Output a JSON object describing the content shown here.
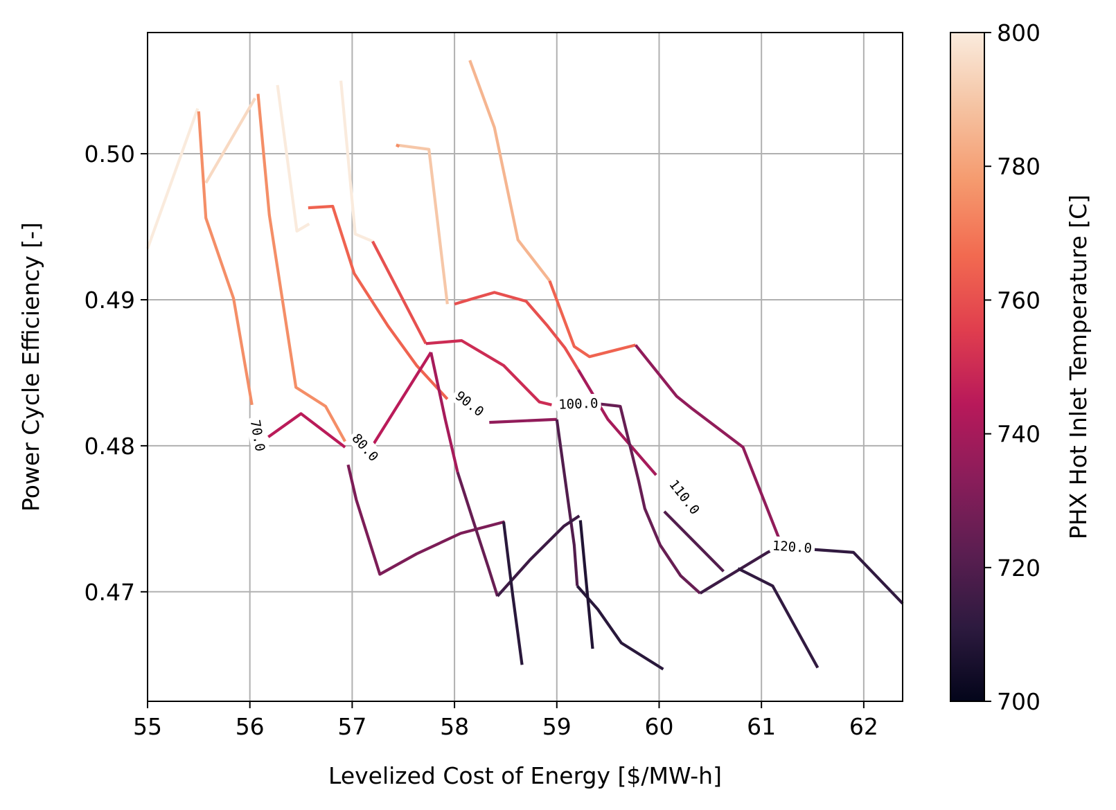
{
  "chart_data": {
    "type": "line",
    "xlabel": "Levelized Cost of Energy [$/MW-h]",
    "ylabel": "Power Cycle Efficiency [-]",
    "xlim": [
      55.0,
      62.38
    ],
    "ylim": [
      0.4625,
      0.5083
    ],
    "x_ticks": [
      55,
      56,
      57,
      58,
      59,
      60,
      61,
      62
    ],
    "y_ticks": [
      0.47,
      0.48,
      0.49,
      0.5
    ],
    "x_tick_labels": [
      "55",
      "56",
      "57",
      "58",
      "59",
      "60",
      "61",
      "62"
    ],
    "y_tick_labels": [
      "0.47",
      "0.48",
      "0.49",
      "0.50"
    ],
    "grid": true,
    "colorbar": {
      "label": "PHX Hot Inlet Temperature [C]",
      "min": 700,
      "max": 800,
      "ticks": [
        700,
        720,
        740,
        760,
        780,
        800
      ],
      "tick_labels": [
        "700",
        "720",
        "740",
        "760",
        "780",
        "800"
      ],
      "colormap": "rocket",
      "stops": [
        "#03051a",
        "#2d1a3f",
        "#5b1e51",
        "#8a1d5a",
        "#b8195a",
        "#e03e4e",
        "#f26a50",
        "#f59a6e",
        "#f5c3a2",
        "#faebdd"
      ]
    },
    "series": [
      {
        "temp": 800,
        "points": [
          [
            55.0,
            0.4935
          ],
          [
            55.49,
            0.5031
          ]
        ]
      },
      {
        "temp": 795,
        "points": [
          [
            55.57,
            0.498
          ],
          [
            56.05,
            0.5038
          ]
        ]
      },
      {
        "temp": 800,
        "points": [
          [
            56.27,
            0.5047
          ],
          [
            56.46,
            0.4947
          ],
          [
            56.58,
            0.4952
          ]
        ]
      },
      {
        "temp": 800,
        "points": [
          [
            56.89,
            0.505
          ],
          [
            57.03,
            0.4945
          ],
          [
            57.2,
            0.494
          ]
        ]
      },
      {
        "temp": 790,
        "points": [
          [
            57.43,
            0.5006
          ],
          [
            57.75,
            0.5003
          ],
          [
            57.93,
            0.4897
          ]
        ]
      },
      {
        "temp": 785,
        "points": [
          [
            58.15,
            0.5064
          ],
          [
            58.39,
            0.5018
          ],
          [
            58.62,
            0.4941
          ],
          [
            58.93,
            0.4913
          ]
        ]
      },
      {
        "temp": 780,
        "points": [
          [
            56.57,
            0.4963
          ],
          [
            56.58,
            0.4963
          ]
        ]
      },
      {
        "temp": 775,
        "points": [
          [
            55.5,
            0.5029
          ],
          [
            55.57,
            0.4956
          ],
          [
            55.84,
            0.4901
          ],
          [
            56.02,
            0.4828
          ]
        ]
      },
      {
        "temp": 775,
        "points": [
          [
            56.08,
            0.5041
          ],
          [
            56.19,
            0.4958
          ],
          [
            56.45,
            0.484
          ],
          [
            56.74,
            0.4827
          ],
          [
            56.93,
            0.4803
          ]
        ]
      },
      {
        "temp": 775,
        "points": [
          [
            57.43,
            0.5006
          ],
          [
            57.46,
            0.5005
          ]
        ]
      },
      {
        "temp": 765,
        "points": [
          [
            56.57,
            0.4963
          ],
          [
            56.81,
            0.4964
          ],
          [
            57.02,
            0.4918
          ],
          [
            57.35,
            0.4882
          ],
          [
            57.63,
            0.4855
          ],
          [
            57.93,
            0.4832
          ]
        ]
      },
      {
        "temp": 760,
        "points": [
          [
            57.2,
            0.494
          ],
          [
            57.72,
            0.487
          ]
        ]
      },
      {
        "temp": 760,
        "points": [
          [
            58.0,
            0.4897
          ],
          [
            58.19,
            0.4901
          ],
          [
            58.39,
            0.4905
          ],
          [
            58.7,
            0.4899
          ],
          [
            58.91,
            0.4882
          ],
          [
            59.08,
            0.4867
          ],
          [
            59.21,
            0.4852
          ]
        ]
      },
      {
        "temp": 765,
        "points": [
          [
            58.93,
            0.4913
          ],
          [
            59.17,
            0.4868
          ],
          [
            59.32,
            0.4861
          ],
          [
            59.77,
            0.4869
          ]
        ]
      },
      {
        "temp": 750,
        "points": [
          [
            57.72,
            0.487
          ],
          [
            58.07,
            0.4872
          ],
          [
            58.48,
            0.4855
          ],
          [
            58.83,
            0.483
          ],
          [
            58.95,
            0.4828
          ]
        ]
      },
      {
        "temp": 745,
        "points": [
          [
            56.18,
            0.4806
          ],
          [
            56.5,
            0.4822
          ],
          [
            56.93,
            0.4799
          ]
        ]
      },
      {
        "temp": 745,
        "points": [
          [
            57.18,
            0.4798
          ],
          [
            57.77,
            0.4864
          ]
        ]
      },
      {
        "temp": 740,
        "points": [
          [
            59.21,
            0.4852
          ],
          [
            59.5,
            0.4818
          ],
          [
            59.97,
            0.478
          ]
        ]
      },
      {
        "temp": 735,
        "points": [
          [
            59.77,
            0.4869
          ],
          [
            60.17,
            0.4834
          ],
          [
            60.33,
            0.4825
          ],
          [
            60.82,
            0.4799
          ],
          [
            61.18,
            0.4735
          ]
        ]
      },
      {
        "temp": 735,
        "points": [
          [
            58.34,
            0.4816
          ],
          [
            58.98,
            0.4818
          ],
          [
            59.0,
            0.4818
          ]
        ]
      },
      {
        "temp": 740,
        "points": [
          [
            57.77,
            0.4864
          ],
          [
            57.91,
            0.4818
          ],
          [
            58.03,
            0.4782
          ]
        ]
      },
      {
        "temp": 730,
        "points": [
          [
            56.96,
            0.4787
          ],
          [
            57.04,
            0.4763
          ],
          [
            57.27,
            0.4712
          ],
          [
            57.63,
            0.4726
          ],
          [
            58.06,
            0.474
          ],
          [
            58.49,
            0.4748
          ]
        ]
      },
      {
        "temp": 725,
        "points": [
          [
            59.37,
            0.4829
          ],
          [
            59.62,
            0.4827
          ],
          [
            59.8,
            0.4776
          ],
          [
            59.86,
            0.4757
          ],
          [
            60.01,
            0.4732
          ],
          [
            60.21,
            0.4711
          ],
          [
            60.4,
            0.4699
          ]
        ]
      },
      {
        "temp": 725,
        "points": [
          [
            58.03,
            0.4782
          ],
          [
            58.19,
            0.4747
          ],
          [
            58.33,
            0.4717
          ],
          [
            58.42,
            0.4697
          ]
        ]
      },
      {
        "temp": 720,
        "points": [
          [
            59.0,
            0.4818
          ],
          [
            59.17,
            0.4732
          ],
          [
            59.2,
            0.4704
          ]
        ]
      },
      {
        "temp": 720,
        "points": [
          [
            60.05,
            0.4755
          ],
          [
            60.63,
            0.4714
          ]
        ]
      },
      {
        "temp": 715,
        "points": [
          [
            58.42,
            0.4697
          ],
          [
            58.74,
            0.4722
          ],
          [
            59.07,
            0.4745
          ],
          [
            59.22,
            0.4752
          ]
        ]
      },
      {
        "temp": 715,
        "points": [
          [
            60.4,
            0.4699
          ],
          [
            60.73,
            0.4713
          ],
          [
            61.06,
            0.4727
          ],
          [
            61.18,
            0.4731
          ]
        ]
      },
      {
        "temp": 710,
        "points": [
          [
            58.48,
            0.4748
          ],
          [
            58.57,
            0.4697
          ],
          [
            58.66,
            0.465
          ]
        ]
      },
      {
        "temp": 710,
        "points": [
          [
            59.2,
            0.4704
          ],
          [
            59.4,
            0.4688
          ],
          [
            59.63,
            0.4665
          ],
          [
            60.04,
            0.4647
          ]
        ]
      },
      {
        "temp": 712,
        "points": [
          [
            60.77,
            0.4716
          ],
          [
            61.11,
            0.4704
          ],
          [
            61.55,
            0.4648
          ]
        ]
      },
      {
        "temp": 712,
        "points": [
          [
            61.5,
            0.4729
          ],
          [
            61.9,
            0.4727
          ],
          [
            62.38,
            0.4692
          ]
        ]
      },
      {
        "temp": 708,
        "points": [
          [
            59.23,
            0.4749
          ],
          [
            59.29,
            0.4705
          ],
          [
            59.35,
            0.4661
          ]
        ]
      }
    ],
    "contour_labels": [
      {
        "text": "70.0",
        "x": 56.08,
        "y": 0.4807,
        "angle": 80
      },
      {
        "text": "80.0",
        "x": 57.13,
        "y": 0.4799,
        "angle": 48
      },
      {
        "text": "90.0",
        "x": 58.15,
        "y": 0.4829,
        "angle": 38
      },
      {
        "text": "100.0",
        "x": 59.21,
        "y": 0.4829,
        "angle": -2
      },
      {
        "text": "110.0",
        "x": 60.25,
        "y": 0.4765,
        "angle": 52
      },
      {
        "text": "120.0",
        "x": 61.3,
        "y": 0.4731,
        "angle": 4
      }
    ]
  }
}
